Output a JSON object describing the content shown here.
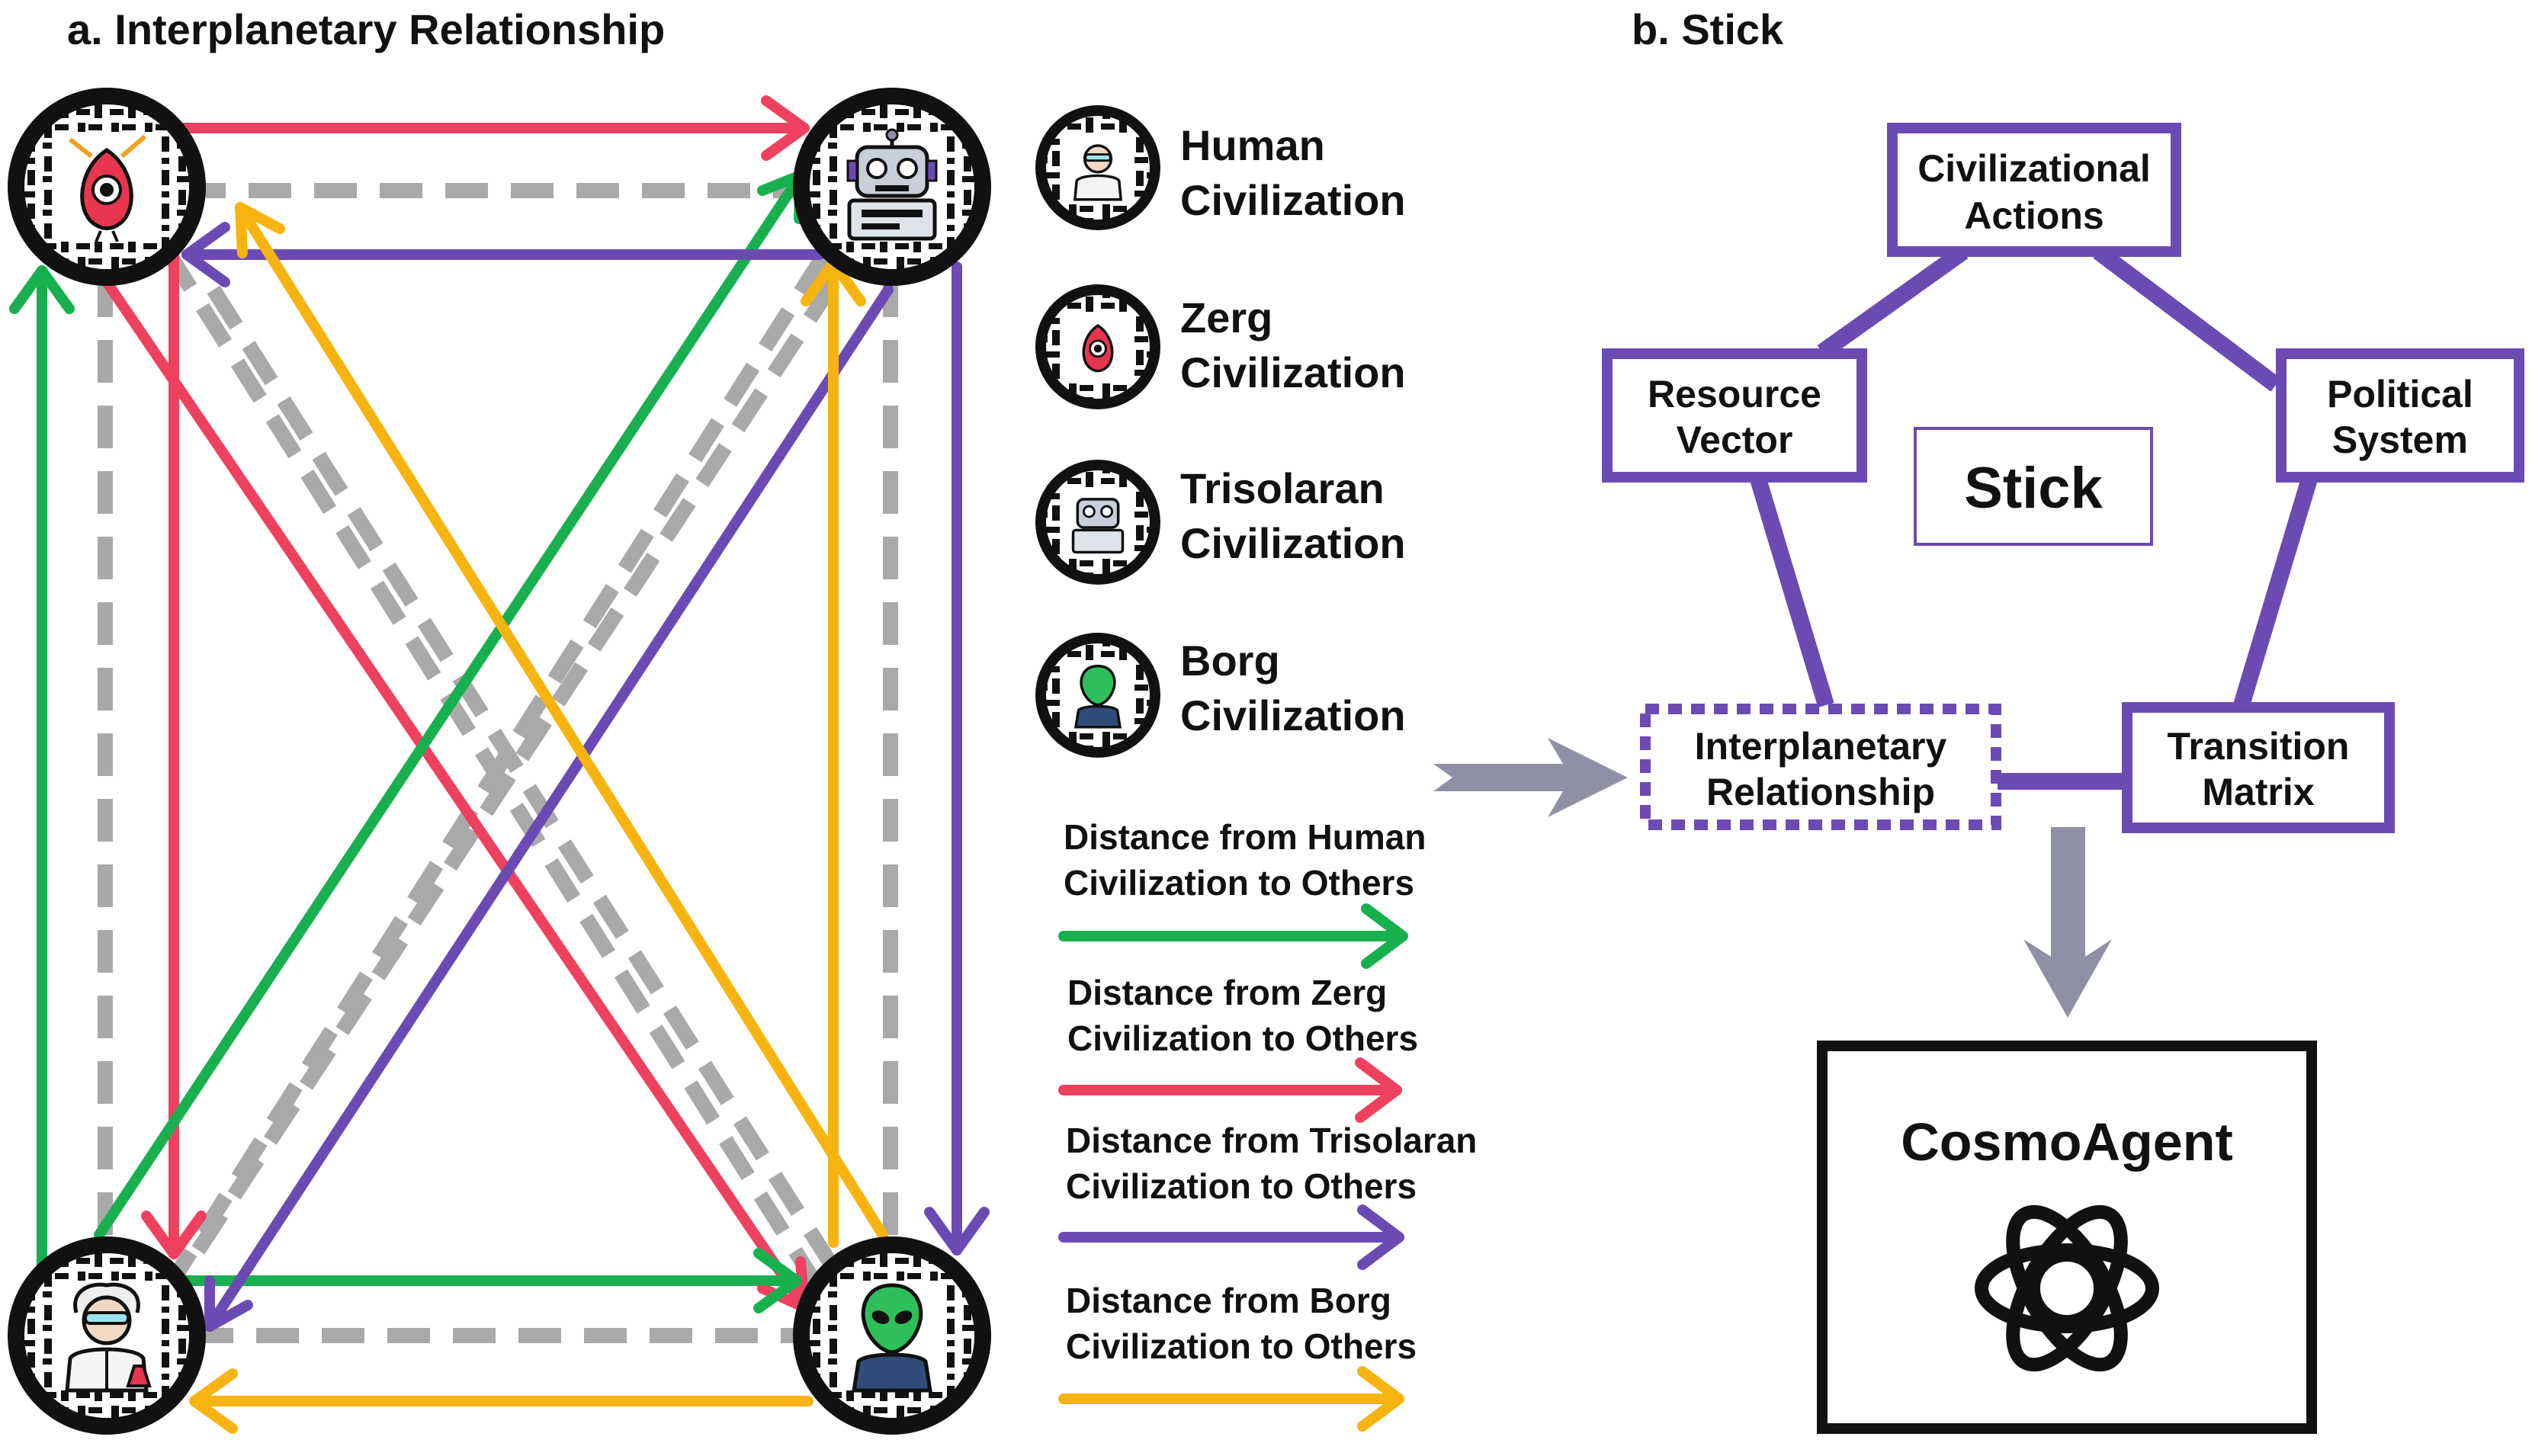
{
  "panel_a": {
    "title": "a. Interplanetary Relationship",
    "nodes": {
      "zerg": "zerg-icon",
      "trisolaran": "robot-icon",
      "human": "scientist-icon",
      "borg": "alien-icon"
    },
    "legend_civs": [
      {
        "line1": "Human",
        "line2": "Civilization",
        "icon": "scientist-icon"
      },
      {
        "line1": "Zerg",
        "line2": "Civilization",
        "icon": "zerg-icon"
      },
      {
        "line1": "Trisolaran",
        "line2": "Civilization",
        "icon": "robot-icon"
      },
      {
        "line1": "Borg",
        "line2": "Civilization",
        "icon": "alien-icon"
      }
    ],
    "legend_distances": [
      {
        "line1": "Distance from Human",
        "line2": "Civilization to Others",
        "color": "#18b04e"
      },
      {
        "line1": "Distance from Zerg",
        "line2": "Civilization to Others",
        "color": "#ee4160"
      },
      {
        "line1": "Distance from Trisolaran",
        "line2": "Civilization to Others",
        "color": "#6b4bb3"
      },
      {
        "line1": "Distance from Borg",
        "line2": "Civilization to Others",
        "color": "#f7b410"
      }
    ]
  },
  "panel_b": {
    "title": "b. Stick",
    "boxes": {
      "actions": {
        "line1": "Civilizational",
        "line2": "Actions"
      },
      "resource": {
        "line1": "Resource",
        "line2": "Vector"
      },
      "political": {
        "line1": "Political",
        "line2": "System"
      },
      "relationship": {
        "line1": "Interplanetary",
        "line2": "Relationship"
      },
      "transition": {
        "line1": "Transition",
        "line2": "Matrix"
      }
    },
    "center_label": "Stick",
    "agent_label": "CosmoAgent",
    "agent_icon": "openai-logo-icon"
  },
  "colors": {
    "human": "#18b04e",
    "zerg": "#ee4160",
    "trisolaran": "#6b4bb3",
    "borg": "#f7b410",
    "dashed": "#a9a9a9",
    "stick_purple": "#6b4bb3",
    "arrow_gray": "#8f8fa6"
  }
}
